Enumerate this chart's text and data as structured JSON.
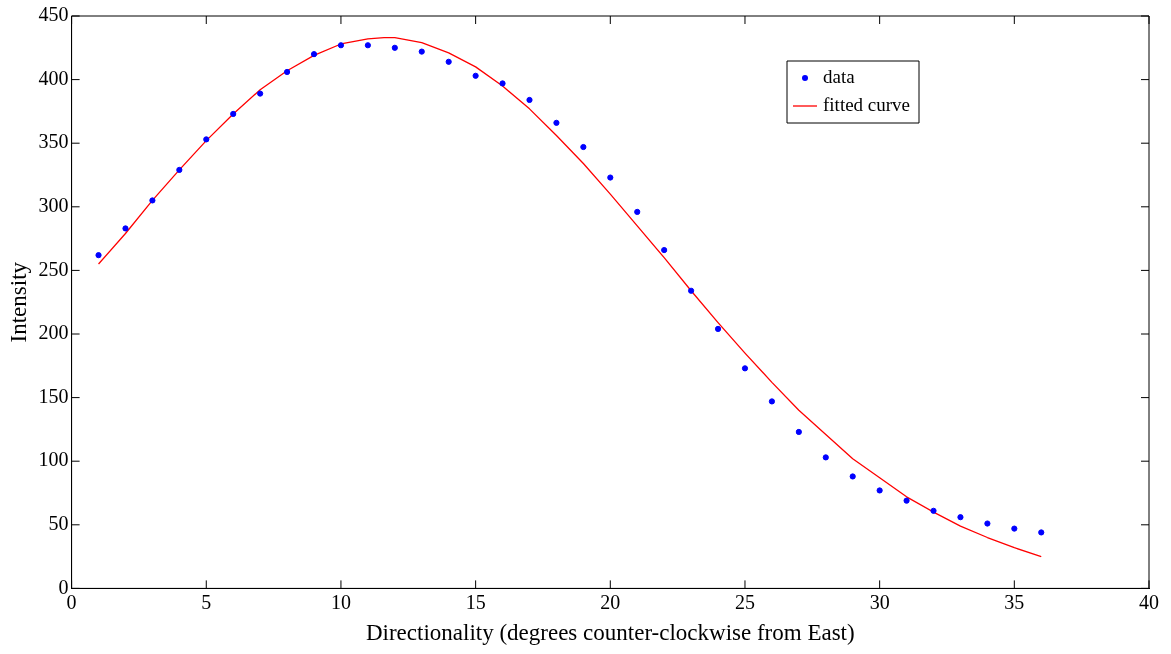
{
  "chart_data": {
    "type": "scatter",
    "xlabel": "Directionality (degrees counter-clockwise from East)",
    "ylabel": "Intensity",
    "xlim": [
      0,
      40
    ],
    "xticks": [
      0,
      5,
      10,
      15,
      20,
      25,
      30,
      35,
      40
    ],
    "ylim": [
      0,
      450
    ],
    "yticks": [
      0,
      50,
      100,
      150,
      200,
      250,
      300,
      350,
      400,
      450
    ],
    "grid": false,
    "legend": "top right",
    "marker": "circle",
    "series": [
      {
        "name": "data",
        "color": "#0000ff",
        "x": [
          1,
          2,
          3,
          4,
          5,
          6,
          7,
          8,
          9,
          10,
          11,
          12,
          13,
          14,
          15,
          16,
          17,
          18,
          19,
          20,
          21,
          22,
          23,
          24,
          25,
          26,
          27,
          28,
          29,
          30,
          31,
          32,
          33,
          34,
          35,
          36
        ],
        "values": [
          262,
          283,
          305,
          329,
          353,
          373,
          389,
          406,
          420,
          427,
          427,
          425,
          422,
          414,
          403,
          397,
          384,
          366,
          347,
          323,
          296,
          266,
          234,
          204,
          173,
          147,
          123,
          103,
          88,
          77,
          69,
          61,
          56,
          51,
          47,
          44
        ]
      },
      {
        "name": "fitted curve",
        "type": "line",
        "marker": "none",
        "line_style": "solid",
        "color": "#ff0000",
        "x": [
          1,
          2,
          3,
          4,
          5,
          6,
          7,
          8,
          9,
          10,
          11,
          11.6,
          12,
          13,
          14,
          15,
          16,
          17,
          18,
          19,
          20,
          21,
          22,
          23,
          24,
          25,
          26,
          27,
          28,
          29,
          30,
          31,
          32,
          33,
          34,
          35,
          36
        ],
        "values": [
          255,
          279,
          305,
          329,
          352,
          373,
          392,
          407,
          419,
          428,
          432,
          433,
          433,
          429,
          421,
          410,
          395,
          377,
          356,
          334,
          310,
          285,
          260,
          234,
          209,
          185,
          162,
          140,
          121,
          102,
          87,
          72,
          60,
          49,
          40,
          32,
          25
        ]
      }
    ]
  }
}
